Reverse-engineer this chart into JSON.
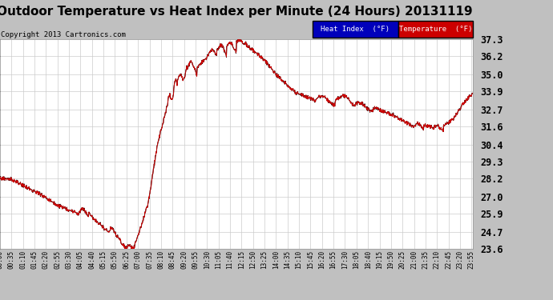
{
  "title": "Outdoor Temperature vs Heat Index per Minute (24 Hours) 20131119",
  "copyright": "Copyright 2013 Cartronics.com",
  "ylabel_right_ticks": [
    23.6,
    24.7,
    25.9,
    27.0,
    28.2,
    29.3,
    30.4,
    31.6,
    32.7,
    33.9,
    35.0,
    36.2,
    37.3
  ],
  "ylim": [
    23.6,
    37.3
  ],
  "xlim": [
    0,
    1439
  ],
  "background_color": "#c0c0c0",
  "plot_bg_color": "#ffffff",
  "grid_color": "#cccccc",
  "title_fontsize": 11,
  "copyright_fontsize": 6.5,
  "legend_heat_color": "#0000bb",
  "legend_temp_color": "#cc0000",
  "line_color": "#cc0000",
  "line_heat_color": "#000000",
  "tick_label_fontsize": 5.5,
  "ytick_fontsize": 8.5
}
